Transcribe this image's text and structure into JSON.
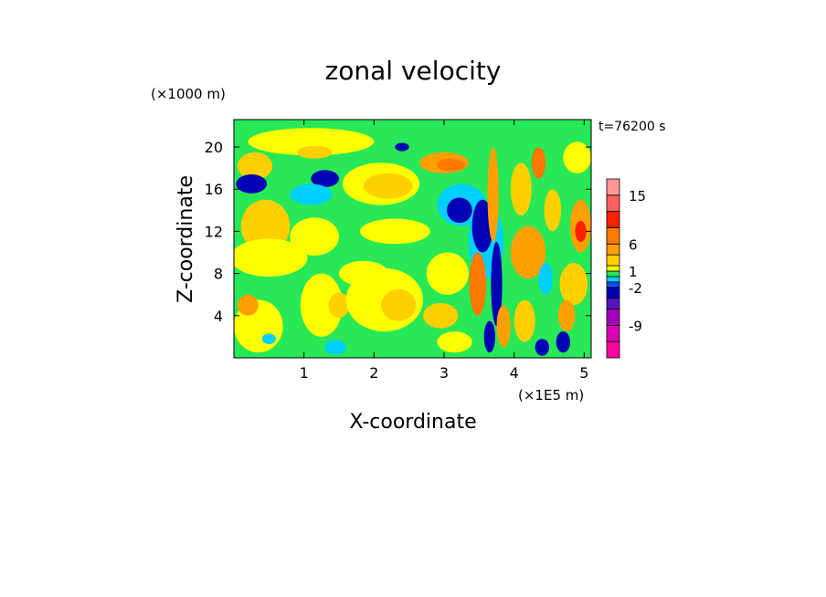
{
  "chart_data": {
    "type": "heatmap",
    "title": "zonal velocity",
    "xlabel": "X-coordinate",
    "ylabel": "Z-coordinate",
    "x_unit_label": "(×1E5 m)",
    "y_unit_label": "(×1000 m)",
    "time_label": "t=76200 s",
    "x_range": [
      0,
      5.1
    ],
    "y_range": [
      0,
      22.6
    ],
    "x_ticks": [
      "1",
      "2",
      "3",
      "4",
      "5"
    ],
    "x_tick_values": [
      1,
      2,
      3,
      4,
      5
    ],
    "y_ticks": [
      "4",
      "8",
      "12",
      "16",
      "20"
    ],
    "y_tick_values": [
      4,
      8,
      12,
      16,
      20
    ],
    "colorbar": {
      "levels": [
        -15,
        -12,
        -9,
        -6,
        -4,
        -2,
        -1,
        0,
        1,
        2,
        4,
        6,
        9,
        12,
        15,
        18
      ],
      "labels": [
        "15",
        "6",
        "1",
        "-2",
        "-9"
      ],
      "label_values": [
        15,
        6,
        1,
        -2,
        -9
      ],
      "colors": [
        "#ff00a0",
        "#d800b0",
        "#a000b8",
        "#5a10c0",
        "#0000b4",
        "#0050ff",
        "#00d0ff",
        "#28e858",
        "#ffff00",
        "#ffd000",
        "#ffa000",
        "#ff7800",
        "#ff2000",
        "#ff6060",
        "#ff9898",
        "#ffc8c8"
      ]
    },
    "background_level": "#28e858",
    "blobs": [
      {
        "x": 0.3,
        "y": 18.2,
        "rx": 0.25,
        "ry": 1.3,
        "c": "#ffd000"
      },
      {
        "x": 0.45,
        "y": 12.5,
        "rx": 0.35,
        "ry": 2.5,
        "c": "#ffd000"
      },
      {
        "x": 0.25,
        "y": 16.5,
        "rx": 0.22,
        "ry": 0.9,
        "c": "#0000b4"
      },
      {
        "x": 0.5,
        "y": 9.5,
        "rx": 0.55,
        "ry": 1.8,
        "c": "#ffff00"
      },
      {
        "x": 0.35,
        "y": 3.0,
        "rx": 0.35,
        "ry": 2.5,
        "c": "#ffff00"
      },
      {
        "x": 0.2,
        "y": 5.0,
        "rx": 0.15,
        "ry": 1.0,
        "c": "#ffa000"
      },
      {
        "x": 0.5,
        "y": 1.8,
        "rx": 0.1,
        "ry": 0.5,
        "c": "#00d0ff"
      },
      {
        "x": 1.1,
        "y": 20.5,
        "rx": 0.9,
        "ry": 1.3,
        "c": "#ffff00"
      },
      {
        "x": 1.15,
        "y": 19.5,
        "rx": 0.25,
        "ry": 0.6,
        "c": "#ffd000"
      },
      {
        "x": 1.3,
        "y": 17.0,
        "rx": 0.2,
        "ry": 0.8,
        "c": "#0000b4"
      },
      {
        "x": 1.1,
        "y": 15.5,
        "rx": 0.3,
        "ry": 1.0,
        "c": "#00d0ff"
      },
      {
        "x": 1.15,
        "y": 11.5,
        "rx": 0.35,
        "ry": 1.8,
        "c": "#ffff00"
      },
      {
        "x": 1.25,
        "y": 5.0,
        "rx": 0.3,
        "ry": 3.0,
        "c": "#ffff00"
      },
      {
        "x": 1.5,
        "y": 5.0,
        "rx": 0.15,
        "ry": 1.2,
        "c": "#ffd000"
      },
      {
        "x": 1.45,
        "y": 1.0,
        "rx": 0.15,
        "ry": 0.7,
        "c": "#00d0ff"
      },
      {
        "x": 2.1,
        "y": 16.5,
        "rx": 0.55,
        "ry": 2.0,
        "c": "#ffff00"
      },
      {
        "x": 2.2,
        "y": 16.3,
        "rx": 0.35,
        "ry": 1.2,
        "c": "#ffd000"
      },
      {
        "x": 2.4,
        "y": 20.0,
        "rx": 0.1,
        "ry": 0.4,
        "c": "#0000b4"
      },
      {
        "x": 2.3,
        "y": 12.0,
        "rx": 0.5,
        "ry": 1.2,
        "c": "#ffff00"
      },
      {
        "x": 2.15,
        "y": 5.5,
        "rx": 0.55,
        "ry": 3.0,
        "c": "#ffff00"
      },
      {
        "x": 2.35,
        "y": 5.0,
        "rx": 0.25,
        "ry": 1.5,
        "c": "#ffd000"
      },
      {
        "x": 1.85,
        "y": 8.0,
        "rx": 0.35,
        "ry": 1.2,
        "c": "#ffff00"
      },
      {
        "x": 3.0,
        "y": 18.5,
        "rx": 0.35,
        "ry": 1.0,
        "c": "#ffa000"
      },
      {
        "x": 3.1,
        "y": 18.3,
        "rx": 0.2,
        "ry": 0.6,
        "c": "#ff7800"
      },
      {
        "x": 3.25,
        "y": 14.5,
        "rx": 0.35,
        "ry": 2.0,
        "c": "#00d0ff"
      },
      {
        "x": 3.22,
        "y": 14.0,
        "rx": 0.18,
        "ry": 1.2,
        "c": "#0000b4"
      },
      {
        "x": 3.05,
        "y": 8.0,
        "rx": 0.3,
        "ry": 2.0,
        "c": "#ffff00"
      },
      {
        "x": 2.95,
        "y": 4.0,
        "rx": 0.25,
        "ry": 1.2,
        "c": "#ffd000"
      },
      {
        "x": 3.15,
        "y": 1.5,
        "rx": 0.25,
        "ry": 1.0,
        "c": "#ffff00"
      },
      {
        "x": 3.6,
        "y": 11.0,
        "rx": 0.25,
        "ry": 3.5,
        "c": "#00d0ff"
      },
      {
        "x": 3.55,
        "y": 12.5,
        "rx": 0.15,
        "ry": 2.5,
        "c": "#0000b4"
      },
      {
        "x": 3.7,
        "y": 15.5,
        "rx": 0.08,
        "ry": 4.5,
        "c": "#ffa000"
      },
      {
        "x": 3.75,
        "y": 7.0,
        "rx": 0.08,
        "ry": 4.0,
        "c": "#0000b4"
      },
      {
        "x": 3.48,
        "y": 7.0,
        "rx": 0.12,
        "ry": 3.0,
        "c": "#ff7800"
      },
      {
        "x": 3.85,
        "y": 3.0,
        "rx": 0.1,
        "ry": 2.0,
        "c": "#ffa000"
      },
      {
        "x": 3.65,
        "y": 2.0,
        "rx": 0.08,
        "ry": 1.5,
        "c": "#0000b4"
      },
      {
        "x": 4.1,
        "y": 16.0,
        "rx": 0.15,
        "ry": 2.5,
        "c": "#ffd000"
      },
      {
        "x": 4.35,
        "y": 18.5,
        "rx": 0.1,
        "ry": 1.5,
        "c": "#ff7800"
      },
      {
        "x": 4.2,
        "y": 10.0,
        "rx": 0.25,
        "ry": 2.5,
        "c": "#ffa000"
      },
      {
        "x": 4.45,
        "y": 7.5,
        "rx": 0.1,
        "ry": 1.5,
        "c": "#00d0ff"
      },
      {
        "x": 4.15,
        "y": 3.5,
        "rx": 0.15,
        "ry": 2.0,
        "c": "#ffd000"
      },
      {
        "x": 4.4,
        "y": 1.0,
        "rx": 0.1,
        "ry": 0.8,
        "c": "#0000b4"
      },
      {
        "x": 4.7,
        "y": 1.5,
        "rx": 0.1,
        "ry": 1.0,
        "c": "#0000b4"
      },
      {
        "x": 4.55,
        "y": 14.0,
        "rx": 0.12,
        "ry": 2.0,
        "c": "#ffd000"
      },
      {
        "x": 4.95,
        "y": 12.5,
        "rx": 0.15,
        "ry": 2.5,
        "c": "#ffa000"
      },
      {
        "x": 4.95,
        "y": 12.0,
        "rx": 0.08,
        "ry": 1.0,
        "c": "#ff2000"
      },
      {
        "x": 4.85,
        "y": 7.0,
        "rx": 0.2,
        "ry": 2.0,
        "c": "#ffd000"
      },
      {
        "x": 4.9,
        "y": 19.0,
        "rx": 0.2,
        "ry": 1.5,
        "c": "#ffff00"
      },
      {
        "x": 4.75,
        "y": 4.0,
        "rx": 0.12,
        "ry": 1.5,
        "c": "#ffa000"
      }
    ]
  }
}
